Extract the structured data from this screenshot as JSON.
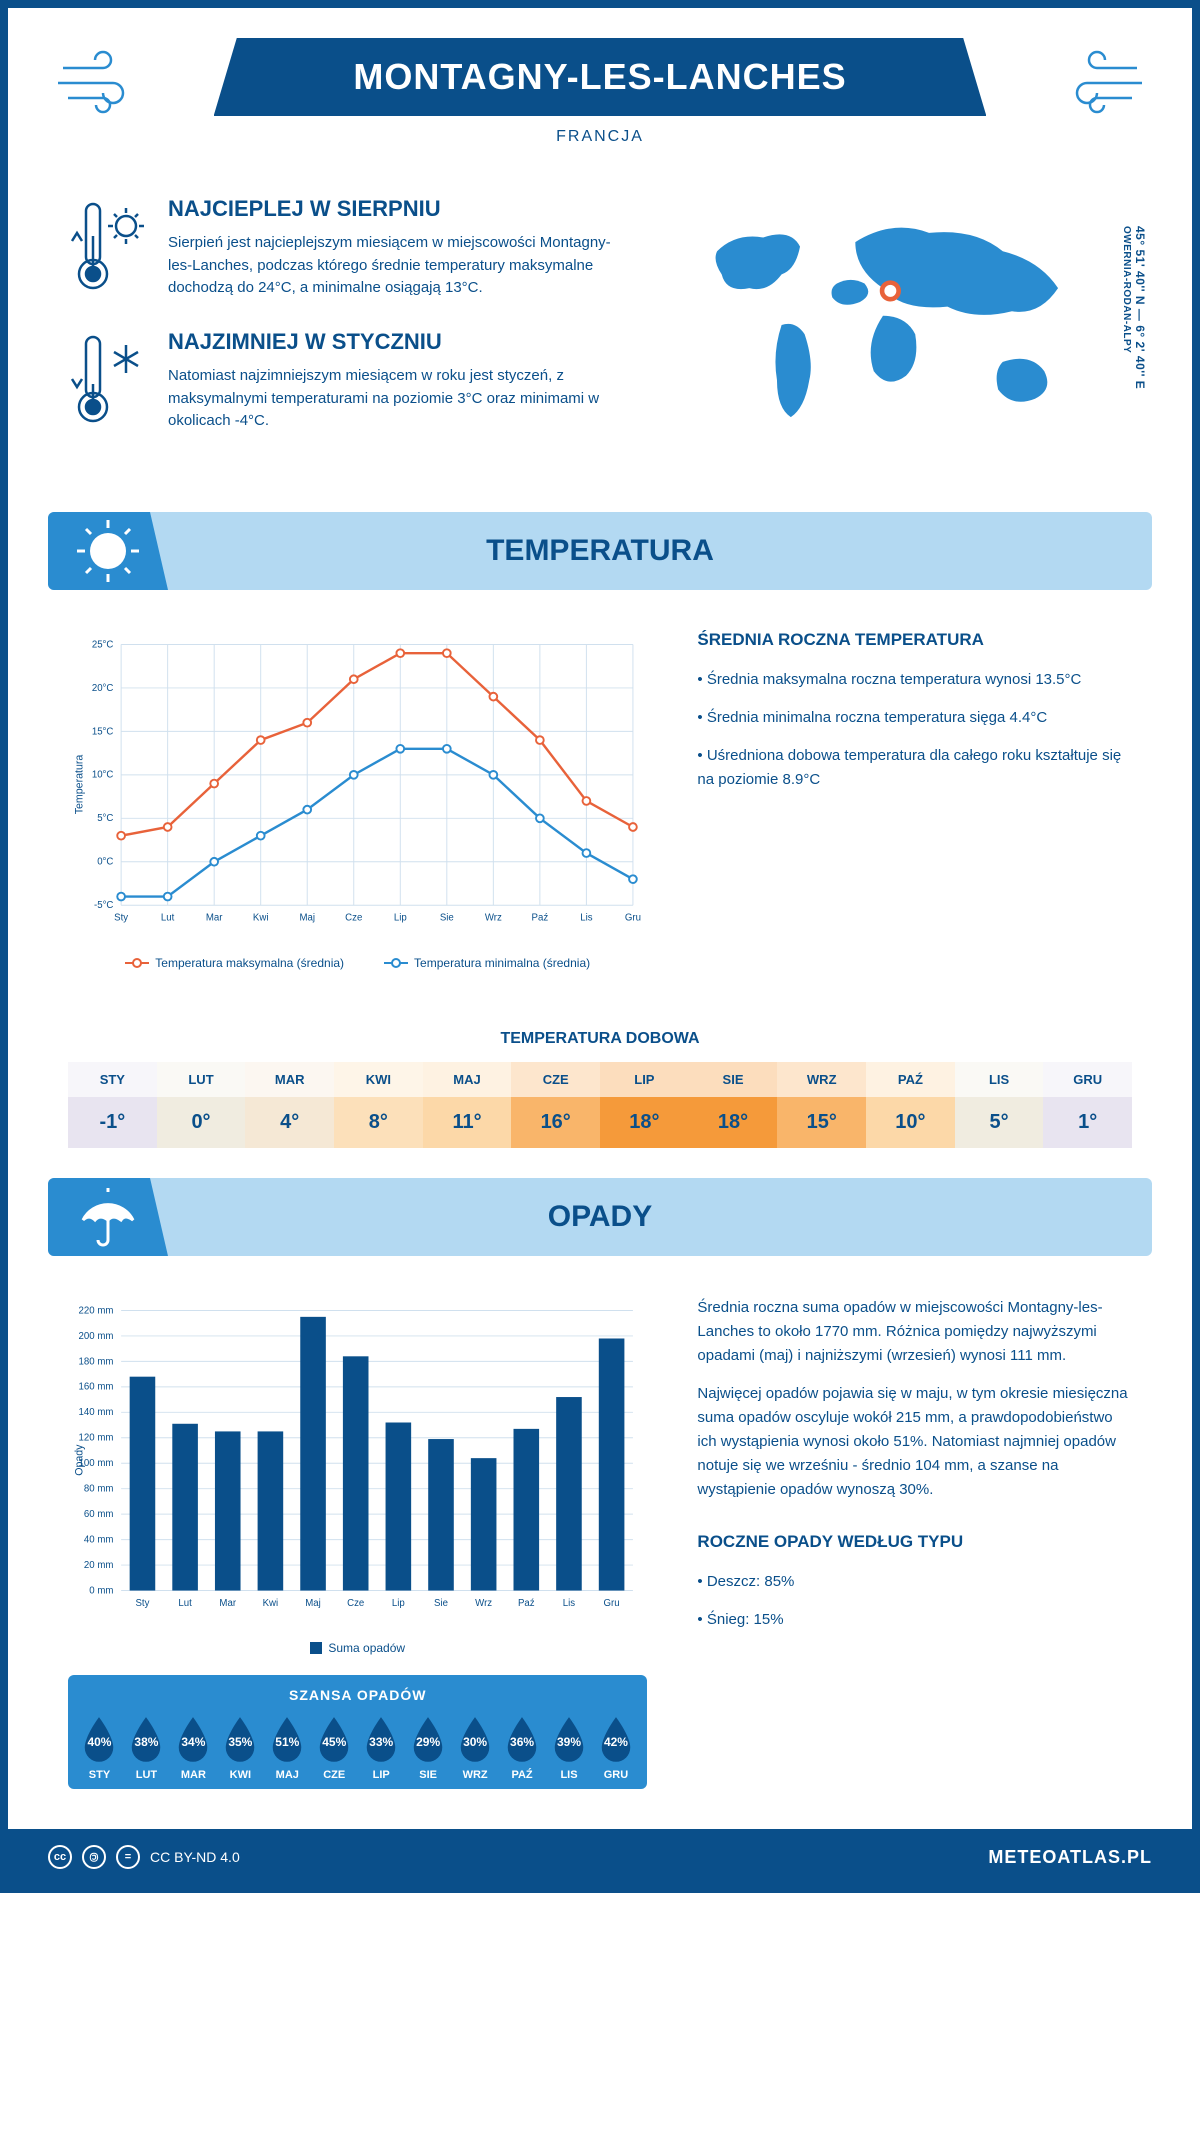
{
  "header": {
    "title": "MONTAGNY-LES-LANCHES",
    "country": "FRANCJA",
    "coords": "45° 51' 40'' N — 6° 2' 40'' E",
    "region": "OWERNIA-RODAN-ALPY"
  },
  "warmest": {
    "title": "NAJCIEPLEJ W SIERPNIU",
    "text": "Sierpień jest najcieplejszym miesiącem w miejscowości Montagny-les-Lanches, podczas którego średnie temperatury maksymalne dochodzą do 24°C, a minimalne osiągają 13°C."
  },
  "coldest": {
    "title": "NAJZIMNIEJ W STYCZNIU",
    "text": "Natomiast najzimniejszym miesiącem w roku jest styczeń, z maksymalnymi temperaturami na poziomie 3°C oraz minimami w okolicach -4°C."
  },
  "temp_section": {
    "title": "TEMPERATURA",
    "side_title": "ŚREDNIA ROCZNA TEMPERATURA",
    "bullets": [
      "• Średnia maksymalna roczna temperatura wynosi 13.5°C",
      "• Średnia minimalna roczna temperatura sięga 4.4°C",
      "• Uśredniona dobowa temperatura dla całego roku kształtuje się na poziomie 8.9°C"
    ],
    "chart": {
      "months": [
        "Sty",
        "Lut",
        "Mar",
        "Kwi",
        "Maj",
        "Cze",
        "Lip",
        "Sie",
        "Wrz",
        "Paź",
        "Lis",
        "Gru"
      ],
      "max": [
        3,
        4,
        9,
        14,
        16,
        21,
        24,
        24,
        19,
        14,
        7,
        4
      ],
      "min": [
        -4,
        -4,
        0,
        3,
        6,
        10,
        13,
        13,
        10,
        5,
        1,
        -2
      ],
      "ymin": -5,
      "ymax": 25,
      "ystep": 5,
      "max_color": "#e8623a",
      "min_color": "#2a8cd0",
      "ylabel": "Temperatura",
      "legend_max": "Temperatura maksymalna (średnia)",
      "legend_min": "Temperatura minimalna (średnia)"
    },
    "daily": {
      "title": "TEMPERATURA DOBOWA",
      "months": [
        "STY",
        "LUT",
        "MAR",
        "KWI",
        "MAJ",
        "CZE",
        "LIP",
        "SIE",
        "WRZ",
        "PAŹ",
        "LIS",
        "GRU"
      ],
      "values": [
        "-1°",
        "0°",
        "4°",
        "8°",
        "11°",
        "16°",
        "18°",
        "18°",
        "15°",
        "10°",
        "5°",
        "1°"
      ],
      "colors": [
        "#e8e4f0",
        "#f0ece0",
        "#f5e8d5",
        "#fce0ba",
        "#fcd8a8",
        "#f9b56a",
        "#f59a3a",
        "#f59a3a",
        "#f9b56a",
        "#fcd8a8",
        "#f0ece0",
        "#e8e4f0"
      ]
    }
  },
  "precip_section": {
    "title": "OPADY",
    "chart": {
      "months": [
        "Sty",
        "Lut",
        "Mar",
        "Kwi",
        "Maj",
        "Cze",
        "Lip",
        "Sie",
        "Wrz",
        "Paź",
        "Lis",
        "Gru"
      ],
      "values": [
        168,
        131,
        125,
        125,
        215,
        184,
        132,
        119,
        104,
        127,
        152,
        198
      ],
      "ymin": 0,
      "ymax": 220,
      "ystep": 20,
      "bar_color": "#0a4f8a",
      "ylabel": "Opady",
      "legend": "Suma opadów"
    },
    "text1": "Średnia roczna suma opadów w miejscowości Montagny-les-Lanches to około 1770 mm. Różnica pomiędzy najwyższymi opadami (maj) i najniższymi (wrzesień) wynosi 111 mm.",
    "text2": "Najwięcej opadów pojawia się w maju, w tym okresie miesięczna suma opadów oscyluje wokół 215 mm, a prawdopodobieństwo ich wystąpienia wynosi około 51%. Natomiast najmniej opadów notuje się we wrześniu - średnio 104 mm, a szanse na wystąpienie opadów wynoszą 30%.",
    "chance": {
      "title": "SZANSA OPADÓW",
      "months": [
        "STY",
        "LUT",
        "MAR",
        "KWI",
        "MAJ",
        "CZE",
        "LIP",
        "SIE",
        "WRZ",
        "PAŹ",
        "LIS",
        "GRU"
      ],
      "values": [
        "40%",
        "38%",
        "34%",
        "35%",
        "51%",
        "45%",
        "33%",
        "29%",
        "30%",
        "36%",
        "39%",
        "42%"
      ]
    },
    "type_title": "ROCZNE OPADY WEDŁUG TYPU",
    "type_rain": "• Deszcz: 85%",
    "type_snow": "• Śnieg: 15%"
  },
  "footer": {
    "license": "CC BY-ND 4.0",
    "site": "METEOATLAS.PL"
  },
  "colors": {
    "primary": "#0a4f8a",
    "light": "#2a8cd0",
    "panel": "#b3d9f2"
  }
}
